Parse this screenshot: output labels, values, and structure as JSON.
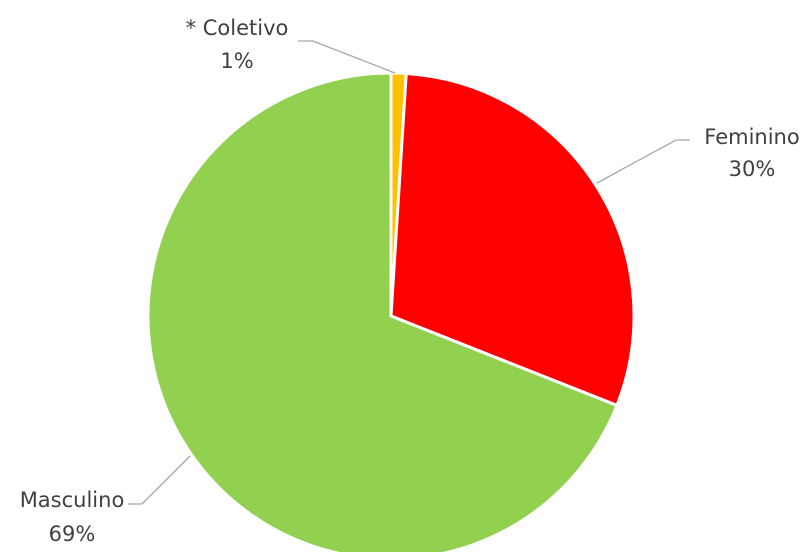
{
  "chart_data": {
    "type": "pie",
    "slices": [
      {
        "name": "* Coletivo",
        "value": 1,
        "label": "1%",
        "color": "#ffc000"
      },
      {
        "name": "Feminino",
        "value": 30,
        "label": "30%",
        "color": "#ff0000"
      },
      {
        "name": "Masculino",
        "value": 69,
        "label": "69%",
        "color": "#92d050"
      }
    ],
    "legend": "none",
    "data_labels": "outside with leader lines"
  }
}
